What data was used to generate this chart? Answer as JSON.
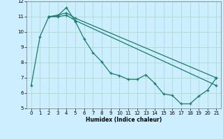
{
  "xlabel": "Humidex (Indice chaleur)",
  "bg_color": "#cceeff",
  "grid_color": "#aaddcc",
  "line_color": "#1a7a6e",
  "line1_x": [
    0,
    1,
    2,
    3,
    4,
    5,
    6,
    7,
    8,
    9,
    10,
    11,
    12,
    13,
    14,
    15,
    16,
    17,
    18,
    19,
    20,
    21
  ],
  "line1_y": [
    6.5,
    9.7,
    11.0,
    11.05,
    11.6,
    10.7,
    9.55,
    8.65,
    8.05,
    7.3,
    7.15,
    6.9,
    6.9,
    7.2,
    6.65,
    5.95,
    5.85,
    5.3,
    5.3,
    5.8,
    6.2,
    7.0
  ],
  "line2_x": [
    2,
    3,
    4,
    5,
    21
  ],
  "line2_y": [
    11.0,
    11.1,
    11.25,
    10.9,
    7.0
  ],
  "line3_x": [
    2,
    3,
    4,
    5,
    21
  ],
  "line3_y": [
    11.0,
    11.0,
    11.1,
    10.75,
    6.5
  ],
  "xlim": [
    -0.5,
    21.5
  ],
  "ylim": [
    5,
    12
  ],
  "yticks": [
    5,
    6,
    7,
    8,
    9,
    10,
    11,
    12
  ],
  "xticks": [
    0,
    1,
    2,
    3,
    4,
    5,
    6,
    7,
    8,
    9,
    10,
    11,
    12,
    13,
    14,
    15,
    16,
    17,
    18,
    19,
    20,
    21
  ]
}
